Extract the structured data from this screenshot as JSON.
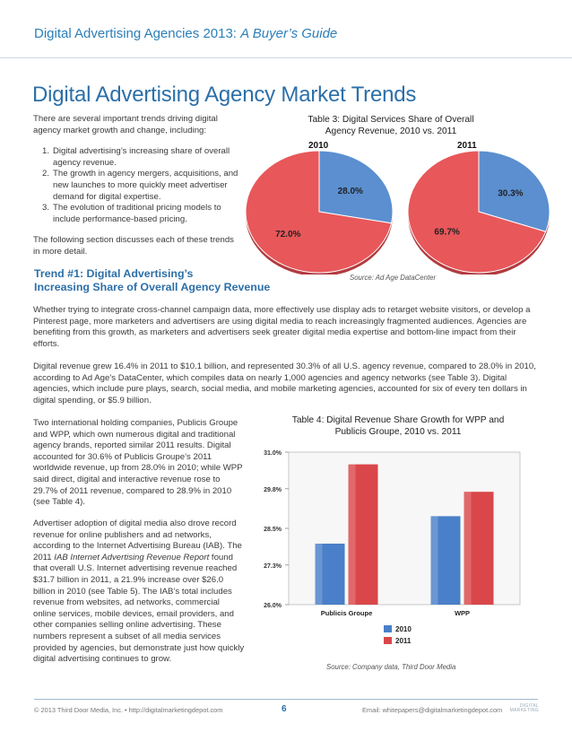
{
  "header": {
    "title_plain": "Digital Advertising Agencies 2013: ",
    "title_italic": "A Buyer’s Guide",
    "color": "#2c7fb8"
  },
  "heading": "Digital Advertising Agency Market Trends",
  "intro": {
    "lead": "There are several important trends driving digital agency market growth and change, including:",
    "items": [
      {
        "num": "1.",
        "text": "Digital advertising’s increasing share of overall agency revenue."
      },
      {
        "num": "2.",
        "text": "The growth in agency mergers, acquisitions, and new launches to more quickly meet advertiser demand for digital expertise."
      },
      {
        "num": "3.",
        "text": "The evolution of traditional pricing models to include performance-based pricing."
      }
    ],
    "closing": "The following section discusses each of these trends in more detail."
  },
  "trend1": {
    "heading_line1": "Trend #1: Digital Advertising’s",
    "heading_line2": "Increasing Share of Overall Agency Revenue",
    "para1": "Whether trying to integrate cross-channel campaign data, more effectively use display ads to retarget website visitors, or develop a Pinterest page, more marketers and advertisers are using digital media to reach increasingly fragmented audiences. Agencies are benefiting from this growth, as marketers and advertisers seek greater digital media expertise and bottom-line impact from their efforts.",
    "para2": "Digital revenue grew 16.4% in 2011 to $10.1 billion, and represented 30.3% of all U.S. agency revenue, compared to 28.0% in 2010, according to Ad Age’s DataCenter, which compiles data on nearly 1,000 agencies and agency networks (see Table 3). Digital agencies, which include pure plays, search, social media, and mobile marketing agencies, accounted for six of every ten dollars in digital spending, or $5.9 billion.",
    "para3": "Two international holding companies, Publicis Groupe and WPP, which own numerous digital and traditional agency brands, reported similar 2011 results. Digital accounted for 30.6% of Publicis Groupe’s 2011 worldwide revenue, up from 28.0% in 2010; while WPP said direct, digital and interactive revenue rose to 29.7% of 2011 revenue, compared to 28.9% in 2010 (see Table 4).",
    "para4_a": "Advertiser adoption of digital media also drove record revenue for online publishers and ad networks, according to the Internet Advertising Bureau (IAB). The 2011 ",
    "para4_italic": "IAB Internet Advertising Revenue Report",
    "para4_b": " found that overall U.S. Internet advertising revenue reached $31.7 billion in 2011, a 21.9% increase over $26.0 billion in 2010 (see Table 5). The IAB’s total includes revenue from websites, ad networks, commercial online services, mobile devices, email providers, and other companies selling online advertising. These numbers represent a subset of all media services provided by agencies, but demonstrate just how quickly digital advertising continues to grow."
  },
  "chart_data": [
    {
      "type": "pie",
      "title": "Table 3: Digital Services Share of Overall Agency Revenue, 2010 vs. 2011",
      "source": "Source: Ad Age DataCenter",
      "pies": [
        {
          "label": "2010",
          "slices": [
            {
              "value": 28.0,
              "label": "28.0%",
              "color": "#5b8fd0"
            },
            {
              "value": 72.0,
              "label": "72.0%",
              "color": "#e8575a"
            }
          ]
        },
        {
          "label": "2011",
          "slices": [
            {
              "value": 30.3,
              "label": "30.3%",
              "color": "#5b8fd0"
            },
            {
              "value": 69.7,
              "label": "69.7%",
              "color": "#e8575a"
            }
          ]
        }
      ]
    },
    {
      "type": "bar",
      "title": "Table 4: Digital Revenue Share Growth for WPP and Publicis Groupe, 2010 vs. 2011",
      "source": "Source: Company data, Third Door Media",
      "categories": [
        "Publicis Groupe",
        "WPP"
      ],
      "series": [
        {
          "name": "2010",
          "values": [
            28.0,
            28.9
          ],
          "color": "#4a7fc9"
        },
        {
          "name": "2011",
          "values": [
            30.6,
            29.7
          ],
          "color": "#d9474a"
        }
      ],
      "yticks": [
        "31.0%",
        "29.8%",
        "28.5%",
        "27.3%",
        "26.0%"
      ],
      "ylim": [
        26.0,
        31.0
      ],
      "legend": "bottom"
    }
  ],
  "footer": {
    "left": "© 2013 Third Door Media, Inc. • http://digitalmarketingdepot.com",
    "page": "6",
    "right": "Email: whitepapers@digitalmarketingdepot.com",
    "logo_text": "DIGITAL MARKETING"
  }
}
